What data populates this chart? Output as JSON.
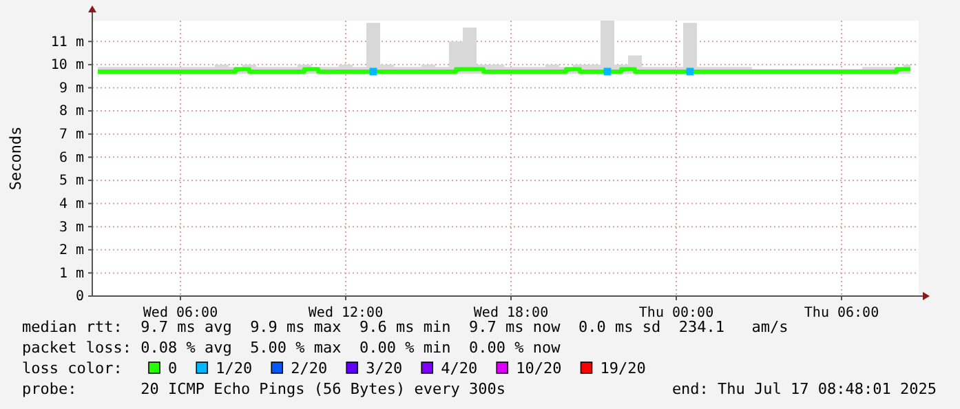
{
  "chart_data": {
    "type": "line",
    "ylabel": "Seconds",
    "x": [
      "2025-07-16T03:00",
      "2025-07-16T03:30",
      "2025-07-16T04:00",
      "2025-07-16T04:30",
      "2025-07-16T05:00",
      "2025-07-16T05:30",
      "2025-07-16T06:00",
      "2025-07-16T06:30",
      "2025-07-16T07:00",
      "2025-07-16T07:30",
      "2025-07-16T08:00",
      "2025-07-16T08:30",
      "2025-07-16T09:00",
      "2025-07-16T09:30",
      "2025-07-16T10:00",
      "2025-07-16T10:30",
      "2025-07-16T11:00",
      "2025-07-16T11:30",
      "2025-07-16T12:00",
      "2025-07-16T12:30",
      "2025-07-16T13:00",
      "2025-07-16T13:30",
      "2025-07-16T14:00",
      "2025-07-16T14:30",
      "2025-07-16T15:00",
      "2025-07-16T15:30",
      "2025-07-16T16:00",
      "2025-07-16T16:30",
      "2025-07-16T17:00",
      "2025-07-16T17:30",
      "2025-07-16T18:00",
      "2025-07-16T18:30",
      "2025-07-16T19:00",
      "2025-07-16T19:30",
      "2025-07-16T20:00",
      "2025-07-16T20:30",
      "2025-07-16T21:00",
      "2025-07-16T21:30",
      "2025-07-16T22:00",
      "2025-07-16T22:30",
      "2025-07-16T23:00",
      "2025-07-16T23:30",
      "2025-07-17T00:00",
      "2025-07-17T00:30",
      "2025-07-17T01:00",
      "2025-07-17T01:30",
      "2025-07-17T02:00",
      "2025-07-17T02:30",
      "2025-07-17T03:00",
      "2025-07-17T03:30",
      "2025-07-17T04:00",
      "2025-07-17T04:30",
      "2025-07-17T05:00",
      "2025-07-17T05:30",
      "2025-07-17T06:00",
      "2025-07-17T06:30",
      "2025-07-17T07:00",
      "2025-07-17T07:30",
      "2025-07-17T08:00",
      "2025-07-17T08:30"
    ],
    "series": [
      {
        "name": "0",
        "color": "#26ff00",
        "values": [
          9.7,
          9.7,
          9.7,
          9.7,
          9.7,
          9.7,
          9.7,
          9.7,
          9.7,
          9.7,
          9.8,
          9.7,
          9.7,
          9.7,
          9.7,
          9.8,
          9.7,
          9.7,
          9.7,
          9.7,
          9.7,
          9.7,
          9.7,
          9.7,
          9.7,
          9.7,
          9.8,
          9.8,
          9.7,
          9.7,
          9.7,
          9.7,
          9.7,
          9.7,
          9.8,
          9.7,
          9.7,
          9.7,
          9.8,
          9.7,
          9.7,
          9.7,
          9.7,
          9.7,
          9.7,
          9.7,
          9.7,
          9.7,
          9.7,
          9.7,
          9.7,
          9.7,
          9.7,
          9.7,
          9.7,
          9.7,
          9.7,
          9.7,
          9.8,
          9.8
        ],
        "lower": [
          9.6,
          9.6,
          9.6,
          9.6,
          9.6,
          9.6,
          9.6,
          9.6,
          9.6,
          9.6,
          9.6,
          9.6,
          9.6,
          9.6,
          9.6,
          9.6,
          9.6,
          9.6,
          9.6,
          9.6,
          9.6,
          9.6,
          9.6,
          9.6,
          9.6,
          9.6,
          9.6,
          9.6,
          9.6,
          9.6,
          9.6,
          9.6,
          9.6,
          9.6,
          9.6,
          9.6,
          9.6,
          9.6,
          9.6,
          9.6,
          9.6,
          9.6,
          9.6,
          9.6,
          9.6,
          9.6,
          9.6,
          9.6,
          9.6,
          9.6,
          9.6,
          9.6,
          9.6,
          9.6,
          9.6,
          9.6,
          9.6,
          9.6,
          9.6,
          9.6
        ],
        "upper": [
          9.9,
          9.9,
          9.9,
          9.9,
          9.9,
          9.9,
          9.9,
          9.9,
          9.9,
          10.0,
          9.9,
          10.0,
          9.9,
          9.9,
          9.9,
          10.0,
          9.9,
          9.9,
          10.0,
          9.9,
          11.8,
          10.0,
          9.9,
          9.9,
          10.0,
          9.9,
          11.0,
          11.6,
          10.0,
          10.0,
          9.9,
          9.9,
          9.9,
          10.0,
          9.9,
          10.0,
          10.0,
          11.9,
          10.0,
          10.4,
          9.9,
          9.9,
          9.9,
          11.8,
          9.9,
          9.9,
          9.9,
          9.9,
          9.8,
          9.8,
          9.8,
          9.8,
          9.8,
          9.8,
          9.8,
          9.8,
          9.9,
          9.9,
          9.9,
          10.0
        ]
      },
      {
        "name": "1/20",
        "color": "#00b8ff",
        "type": "scatter",
        "marker": "square",
        "x": [
          "2025-07-16T13:00",
          "2025-07-16T21:30",
          "2025-07-17T00:30"
        ],
        "values": [
          9.7,
          9.7,
          9.7
        ]
      },
      {
        "name": "2/20",
        "color": "#0059ff",
        "type": "scatter",
        "marker": "square",
        "values": [
          null,
          null,
          null,
          null,
          null,
          null,
          null,
          null,
          null,
          null,
          null,
          null,
          null,
          null,
          null,
          null,
          null,
          null,
          null,
          null,
          null,
          null,
          null,
          null,
          null,
          null,
          null,
          null,
          null,
          null,
          null,
          null,
          null,
          null,
          null,
          null,
          null,
          null,
          null,
          null,
          null,
          null,
          null,
          null,
          null,
          null,
          null,
          null,
          null,
          null,
          null,
          null,
          null,
          null,
          null,
          null,
          null,
          null,
          null,
          null
        ]
      },
      {
        "name": "3/20",
        "color": "#5e00ff",
        "type": "scatter",
        "marker": "square",
        "values": [
          null,
          null,
          null,
          null,
          null,
          null,
          null,
          null,
          null,
          null,
          null,
          null,
          null,
          null,
          null,
          null,
          null,
          null,
          null,
          null,
          null,
          null,
          null,
          null,
          null,
          null,
          null,
          null,
          null,
          null,
          null,
          null,
          null,
          null,
          null,
          null,
          null,
          null,
          null,
          null,
          null,
          null,
          null,
          null,
          null,
          null,
          null,
          null,
          null,
          null,
          null,
          null,
          null,
          null,
          null,
          null,
          null,
          null,
          null,
          null
        ]
      },
      {
        "name": "4/20",
        "color": "#7e00ff",
        "type": "scatter",
        "marker": "square",
        "values": [
          null,
          null,
          null,
          null,
          null,
          null,
          null,
          null,
          null,
          null,
          null,
          null,
          null,
          null,
          null,
          null,
          null,
          null,
          null,
          null,
          null,
          null,
          null,
          null,
          null,
          null,
          null,
          null,
          null,
          null,
          null,
          null,
          null,
          null,
          null,
          null,
          null,
          null,
          null,
          null,
          null,
          null,
          null,
          null,
          null,
          null,
          null,
          null,
          null,
          null,
          null,
          null,
          null,
          null,
          null,
          null,
          null,
          null,
          null,
          null
        ]
      },
      {
        "name": "10/20",
        "color": "#dd00ff",
        "type": "scatter",
        "marker": "square",
        "values": [
          null,
          null,
          null,
          null,
          null,
          null,
          null,
          null,
          null,
          null,
          null,
          null,
          null,
          null,
          null,
          null,
          null,
          null,
          null,
          null,
          null,
          null,
          null,
          null,
          null,
          null,
          null,
          null,
          null,
          null,
          null,
          null,
          null,
          null,
          null,
          null,
          null,
          null,
          null,
          null,
          null,
          null,
          null,
          null,
          null,
          null,
          null,
          null,
          null,
          null,
          null,
          null,
          null,
          null,
          null,
          null,
          null,
          null,
          null,
          null
        ]
      },
      {
        "name": "19/20",
        "color": "#ff0000",
        "type": "scatter",
        "marker": "square",
        "values": [
          null,
          null,
          null,
          null,
          null,
          null,
          null,
          null,
          null,
          null,
          null,
          null,
          null,
          null,
          null,
          null,
          null,
          null,
          null,
          null,
          null,
          null,
          null,
          null,
          null,
          null,
          null,
          null,
          null,
          null,
          null,
          null,
          null,
          null,
          null,
          null,
          null,
          null,
          null,
          null,
          null,
          null,
          null,
          null,
          null,
          null,
          null,
          null,
          null,
          null,
          null,
          null,
          null,
          null,
          null,
          null,
          null,
          null,
          null,
          null
        ]
      }
    ],
    "legend_title": "loss color:",
    "legend": "bottom",
    "grid": true,
    "xlim": [
      "2025-07-16T02:48",
      "2025-07-17T08:48"
    ],
    "xticks": [
      {
        "value": "2025-07-16T06:00",
        "label": "Wed 06:00"
      },
      {
        "value": "2025-07-16T12:00",
        "label": "Wed 12:00"
      },
      {
        "value": "2025-07-16T18:00",
        "label": "Wed 18:00"
      },
      {
        "value": "2025-07-17T00:00",
        "label": "Thu 00:00"
      },
      {
        "value": "2025-07-17T06:00",
        "label": "Thu 06:00"
      }
    ],
    "ylim": [
      0,
      11.9
    ],
    "yticks": [
      0,
      {
        "value": 1,
        "label": "1 m"
      },
      {
        "value": 2,
        "label": "2 m"
      },
      {
        "value": 3,
        "label": "3 m"
      },
      {
        "value": 4,
        "label": "4 m"
      },
      {
        "value": 5,
        "label": "5 m"
      },
      {
        "value": 6,
        "label": "6 m"
      },
      {
        "value": 7,
        "label": "7 m"
      },
      {
        "value": 8,
        "label": "8 m"
      },
      {
        "value": 9,
        "label": "9 m"
      },
      {
        "value": 10,
        "label": "10 m"
      },
      {
        "value": 11,
        "label": "11 m"
      }
    ],
    "annotations": [
      "median rtt:  9.7 ms avg  9.9 ms max  9.6 ms min  9.7 ms now  0.0 ms sd  234.1   am/s",
      "packet loss: 0.08 % avg  5.00 % max  0.00 % min  0.00 % now",
      "probe:       20 ICMP Echo Pings (56 Bytes) every 300s",
      "end: Thu Jul 17 08:48:01 2025"
    ]
  }
}
